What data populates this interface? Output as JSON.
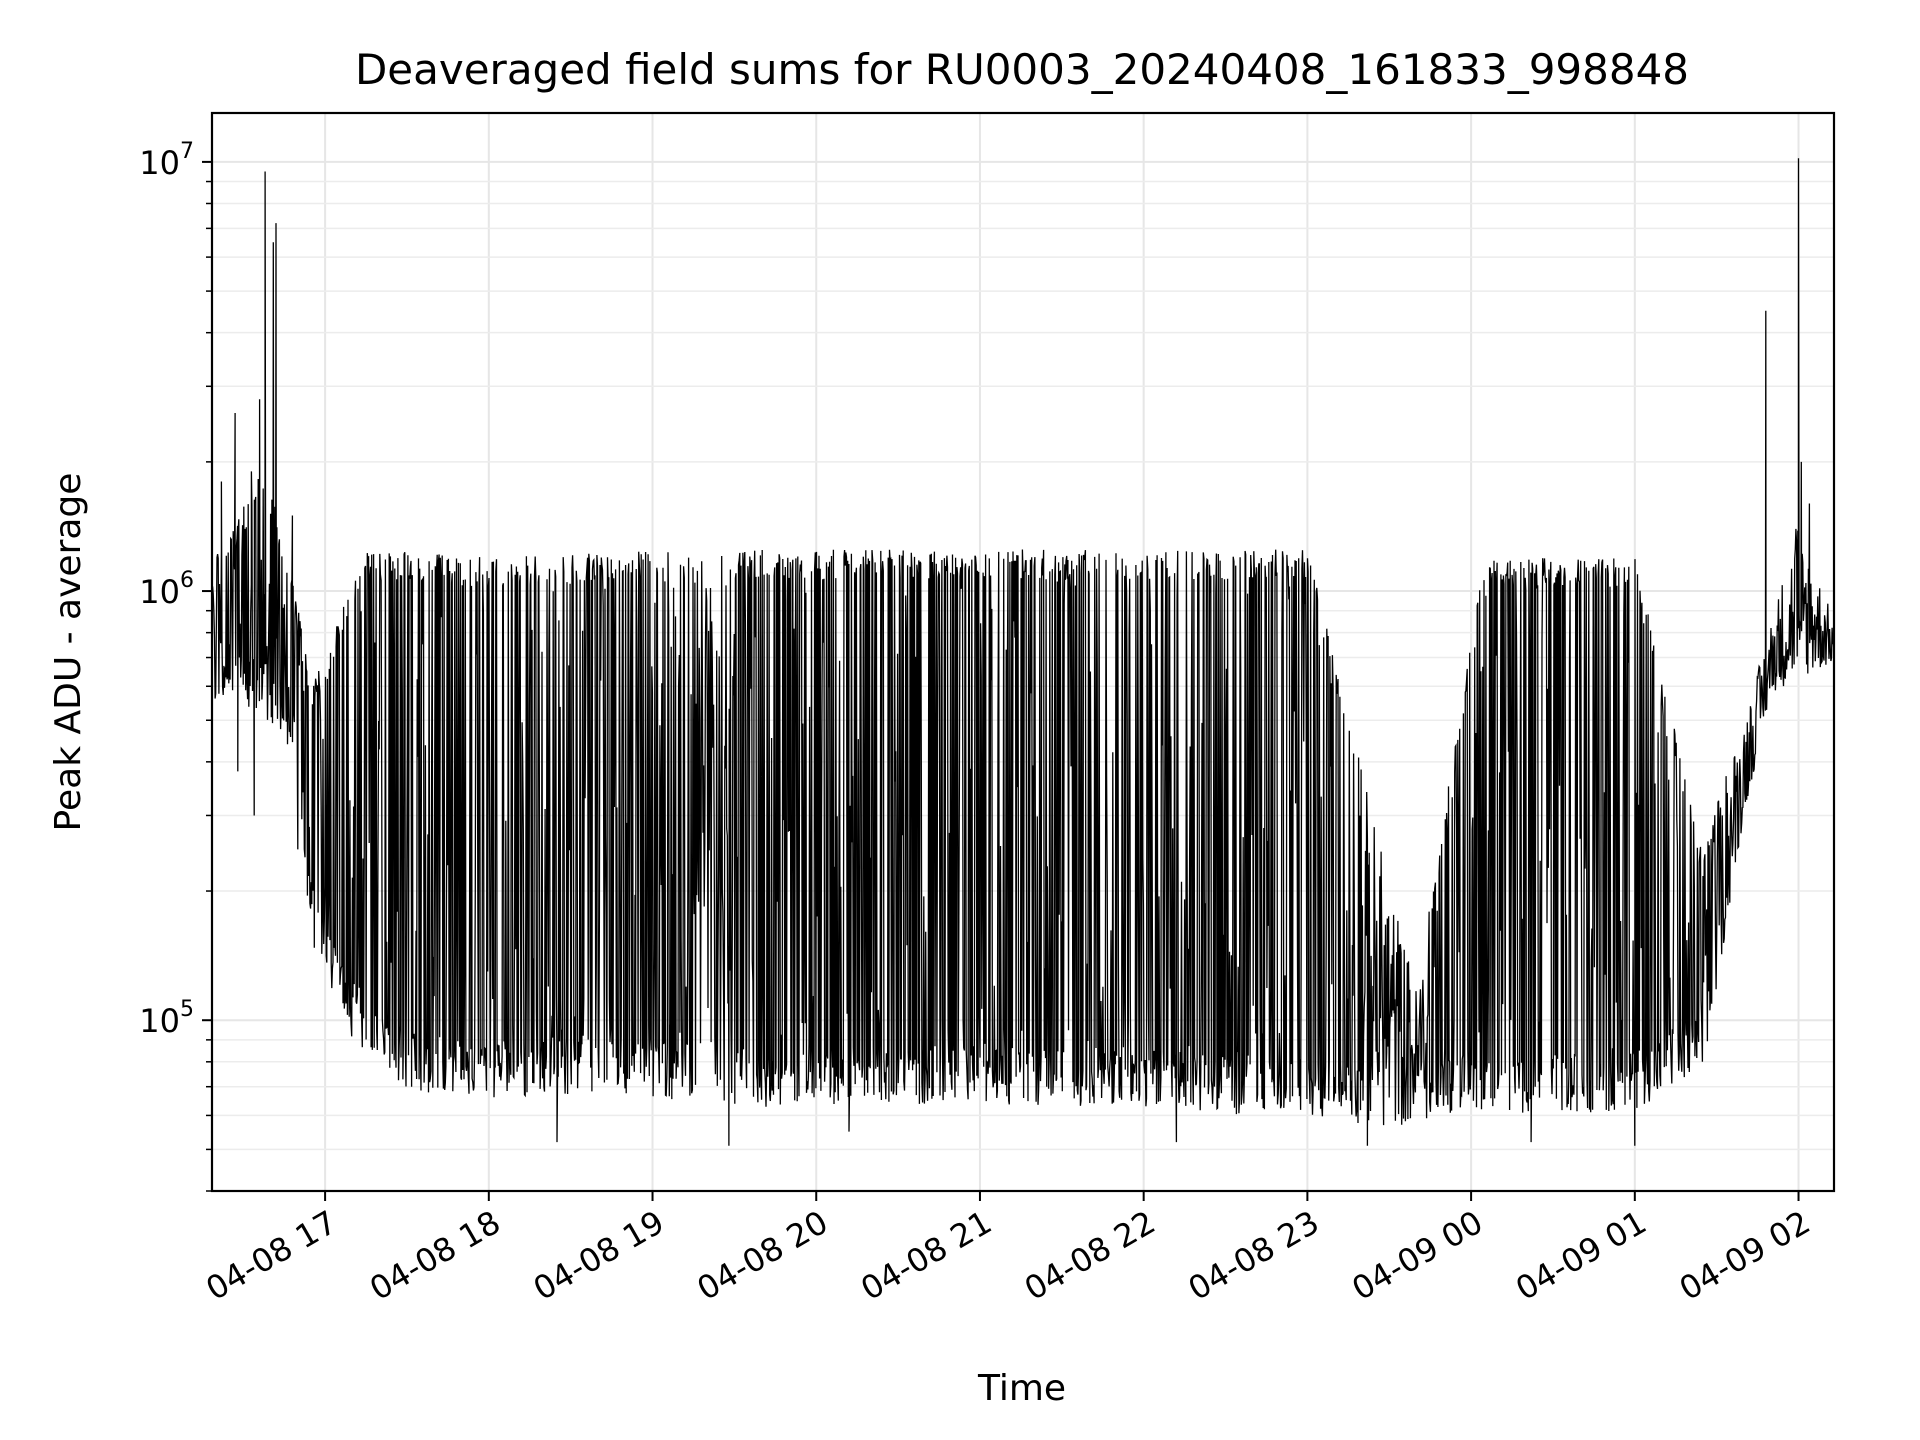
{
  "chart_data": {
    "type": "line",
    "title": "Deaveraged field sums for RU0003_20240408_161833_998848",
    "xlabel": "Time",
    "ylabel": "Peak ADU - average",
    "yscale": "log",
    "grid": true,
    "ylim": [
      40000,
      13000000
    ],
    "x_range": [
      "2024-04-08 16:18:33",
      "2024-04-09 02:13:00"
    ],
    "x_ticks": [
      {
        "t": "2024-04-08 17:00",
        "label": "04-08 17"
      },
      {
        "t": "2024-04-08 18:00",
        "label": "04-08 18"
      },
      {
        "t": "2024-04-08 19:00",
        "label": "04-08 19"
      },
      {
        "t": "2024-04-08 20:00",
        "label": "04-08 20"
      },
      {
        "t": "2024-04-08 21:00",
        "label": "04-08 21"
      },
      {
        "t": "2024-04-08 22:00",
        "label": "04-08 22"
      },
      {
        "t": "2024-04-08 23:00",
        "label": "04-08 23"
      },
      {
        "t": "2024-04-09 00:00",
        "label": "04-09 00"
      },
      {
        "t": "2024-04-09 01:00",
        "label": "04-09 01"
      },
      {
        "t": "2024-04-09 02:00",
        "label": "04-09 02"
      }
    ],
    "y_ticks": [
      {
        "value": 100000,
        "base": "10",
        "exp": "5"
      },
      {
        "value": 1000000,
        "base": "10",
        "exp": "6"
      },
      {
        "value": 10000000,
        "base": "10",
        "exp": "7"
      }
    ],
    "series_color": "#000000",
    "series": [
      {
        "envelope_lower": [
          [
            "2024-04-08 16:18:33",
            550000
          ],
          [
            "2024-04-08 16:28:00",
            560000
          ],
          [
            "2024-04-08 16:38:00",
            500000
          ],
          [
            "2024-04-08 16:48:00",
            420000
          ],
          [
            "2024-04-08 16:55:00",
            150000
          ],
          [
            "2024-04-08 17:10:00",
            90000
          ],
          [
            "2024-04-08 17:30:00",
            68000
          ],
          [
            "2024-04-08 18:00:00",
            66000
          ],
          [
            "2024-04-08 18:30:00",
            67000
          ],
          [
            "2024-04-08 19:00:00",
            66000
          ],
          [
            "2024-04-08 19:30:00",
            62000
          ],
          [
            "2024-04-08 20:00:00",
            64000
          ],
          [
            "2024-04-08 20:30:00",
            63000
          ],
          [
            "2024-04-08 21:00:00",
            64000
          ],
          [
            "2024-04-08 21:30:00",
            62000
          ],
          [
            "2024-04-08 22:00:00",
            63000
          ],
          [
            "2024-04-08 22:30:00",
            60000
          ],
          [
            "2024-04-08 23:00:00",
            60000
          ],
          [
            "2024-04-08 23:30:00",
            56000
          ],
          [
            "2024-04-09 00:00:00",
            62000
          ],
          [
            "2024-04-09 00:30:00",
            60000
          ],
          [
            "2024-04-09 01:00:00",
            62000
          ],
          [
            "2024-04-09 01:25:00",
            75000
          ],
          [
            "2024-04-09 01:40:00",
            300000
          ],
          [
            "2024-04-09 01:50:00",
            580000
          ],
          [
            "2024-04-09 02:13:00",
            680000
          ]
        ],
        "envelope_upper": [
          [
            "2024-04-08 16:18:33",
            1200000
          ],
          [
            "2024-04-08 16:28:00",
            1500000
          ],
          [
            "2024-04-08 16:38:00",
            2000000
          ],
          [
            "2024-04-08 16:48:00",
            1100000
          ],
          [
            "2024-04-08 16:55:00",
            600000
          ],
          [
            "2024-04-08 17:15:00",
            1250000
          ],
          [
            "2024-04-08 18:00:00",
            1200000
          ],
          [
            "2024-04-08 19:00:00",
            1250000
          ],
          [
            "2024-04-08 20:00:00",
            1250000
          ],
          [
            "2024-04-08 21:00:00",
            1250000
          ],
          [
            "2024-04-08 22:00:00",
            1250000
          ],
          [
            "2024-04-08 23:00:00",
            1250000
          ],
          [
            "2024-04-08 23:40:00",
            120000
          ],
          [
            "2024-04-09 00:05:00",
            1200000
          ],
          [
            "2024-04-09 01:00:00",
            1200000
          ],
          [
            "2024-04-09 01:25:00",
            250000
          ],
          [
            "2024-04-09 01:45:00",
            650000
          ],
          [
            "2024-04-09 02:00:00",
            1500000
          ],
          [
            "2024-04-09 02:13:00",
            850000
          ]
        ],
        "gaps": [
          [
            "2024-04-08 19:15:00",
            "2024-04-08 19:30:00"
          ],
          [
            "2024-04-08 23:20:00",
            "2024-04-08 23:45:00"
          ]
        ],
        "spikes": [
          [
            "2024-04-08 16:22:00",
            1800000
          ],
          [
            "2024-04-08 16:27:00",
            2600000
          ],
          [
            "2024-04-08 16:33:00",
            1900000
          ],
          [
            "2024-04-08 16:36:00",
            2800000
          ],
          [
            "2024-04-08 16:38:00",
            9500000
          ],
          [
            "2024-04-08 16:41:00",
            6500000
          ],
          [
            "2024-04-08 16:42:00",
            7200000
          ],
          [
            "2024-04-08 16:48:00",
            1500000
          ],
          [
            "2024-04-09 01:48:00",
            4500000
          ],
          [
            "2024-04-09 02:00:00",
            10200000
          ],
          [
            "2024-04-09 02:01:00",
            2000000
          ],
          [
            "2024-04-09 02:04:00",
            1600000
          ]
        ],
        "dips": [
          [
            "2024-04-08 16:28:00",
            380000
          ],
          [
            "2024-04-08 16:34:00",
            300000
          ],
          [
            "2024-04-08 16:50:00",
            250000
          ],
          [
            "2024-04-08 18:25:00",
            52000
          ],
          [
            "2024-04-08 19:28:00",
            51000
          ],
          [
            "2024-04-08 20:12:00",
            55000
          ],
          [
            "2024-04-08 22:12:00",
            52000
          ],
          [
            "2024-04-08 23:22:00",
            51000
          ],
          [
            "2024-04-09 00:22:00",
            52000
          ],
          [
            "2024-04-09 01:00:00",
            51000
          ]
        ]
      }
    ]
  }
}
